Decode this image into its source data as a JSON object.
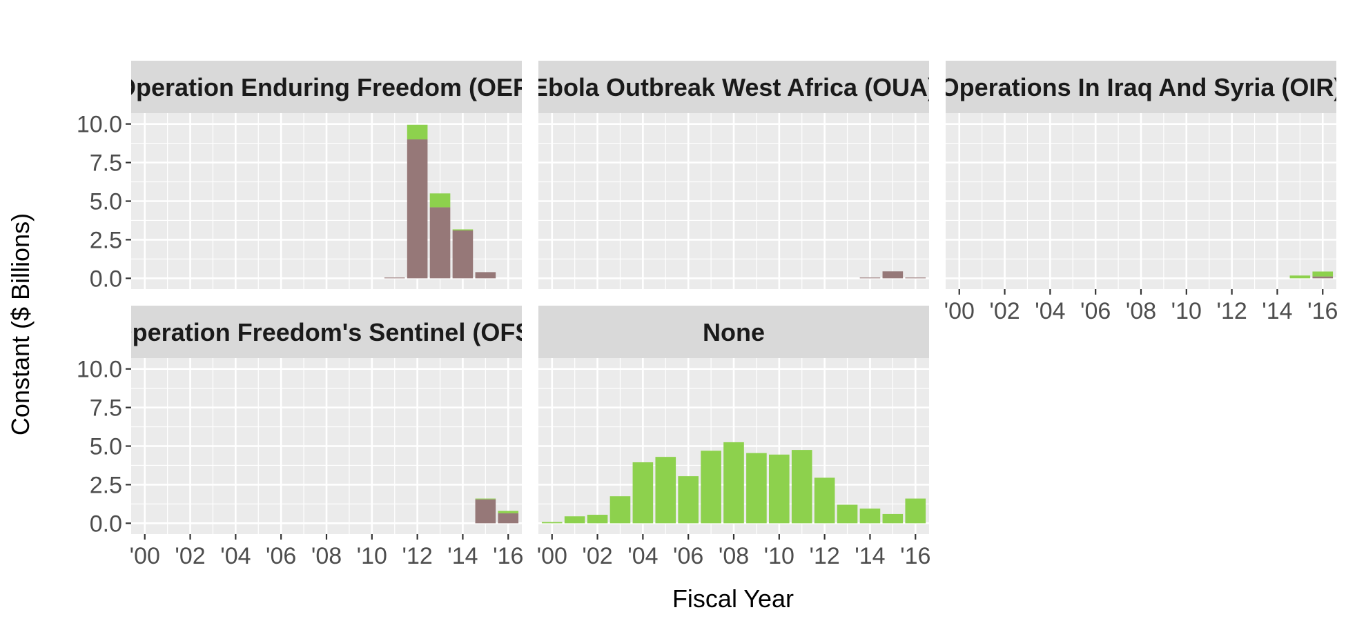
{
  "chart_data": {
    "type": "bar",
    "stacked": true,
    "xlabel": "Fiscal Year",
    "ylabel": "Constant ($ Billions)",
    "x_tick_labels": [
      "'00",
      "'02",
      "'04",
      "'06",
      "'08",
      "'10",
      "'12",
      "'14",
      "'16"
    ],
    "x_tick_values": [
      2000,
      2002,
      2004,
      2006,
      2008,
      2010,
      2012,
      2014,
      2016
    ],
    "xlim": [
      1999.4,
      2016.6
    ],
    "y_tick_labels": [
      "0.0",
      "2.5",
      "5.0",
      "7.5",
      "10.0"
    ],
    "y_tick_values": [
      0,
      2.5,
      5,
      7.5,
      10
    ],
    "ylim": [
      -0.7,
      10.7
    ],
    "grid": true,
    "colors": {
      "series_a": "#967878",
      "series_b": "#8dd14d",
      "panel_bg": "#ebebeb",
      "strip_bg": "#d9d9d9"
    },
    "panels": [
      {
        "title": "Operation Enduring Freedom (OEF)",
        "bars": [
          {
            "x": 2011,
            "a": 0.05,
            "b": 0
          },
          {
            "x": 2012,
            "a": 9.0,
            "b": 0.95
          },
          {
            "x": 2013,
            "a": 4.6,
            "b": 0.9
          },
          {
            "x": 2014,
            "a": 3.1,
            "b": 0.07
          },
          {
            "x": 2015,
            "a": 0.4,
            "b": 0
          }
        ]
      },
      {
        "title": "Ebola Outbreak West Africa (OUA)",
        "bars": [
          {
            "x": 2014,
            "a": 0.05,
            "b": 0
          },
          {
            "x": 2015,
            "a": 0.45,
            "b": 0
          },
          {
            "x": 2016,
            "a": 0.05,
            "b": 0
          }
        ]
      },
      {
        "title": "Operations In Iraq And Syria (OIR)",
        "bars": [
          {
            "x": 2015,
            "a": 0,
            "b": 0.18
          },
          {
            "x": 2016,
            "a": 0.12,
            "b": 0.32
          }
        ]
      },
      {
        "title": "Operation Freedom's Sentinel (OFS)",
        "bars": [
          {
            "x": 2015,
            "a": 1.55,
            "b": 0.05
          },
          {
            "x": 2016,
            "a": 0.65,
            "b": 0.15
          }
        ]
      },
      {
        "title": "None",
        "bars": [
          {
            "x": 2000,
            "a": 0,
            "b": 0.08
          },
          {
            "x": 2001,
            "a": 0,
            "b": 0.45
          },
          {
            "x": 2002,
            "a": 0,
            "b": 0.55
          },
          {
            "x": 2003,
            "a": 0,
            "b": 1.75
          },
          {
            "x": 2004,
            "a": 0,
            "b": 3.95
          },
          {
            "x": 2005,
            "a": 0,
            "b": 4.3
          },
          {
            "x": 2006,
            "a": 0,
            "b": 3.05
          },
          {
            "x": 2007,
            "a": 0,
            "b": 4.7
          },
          {
            "x": 2008,
            "a": 0,
            "b": 5.25
          },
          {
            "x": 2009,
            "a": 0,
            "b": 4.55
          },
          {
            "x": 2010,
            "a": 0,
            "b": 4.45
          },
          {
            "x": 2011,
            "a": 0,
            "b": 4.75
          },
          {
            "x": 2012,
            "a": 0,
            "b": 2.95
          },
          {
            "x": 2013,
            "a": 0,
            "b": 1.2
          },
          {
            "x": 2014,
            "a": 0,
            "b": 0.95
          },
          {
            "x": 2015,
            "a": 0,
            "b": 0.6
          },
          {
            "x": 2016,
            "a": 0,
            "b": 1.6
          }
        ]
      }
    ]
  }
}
